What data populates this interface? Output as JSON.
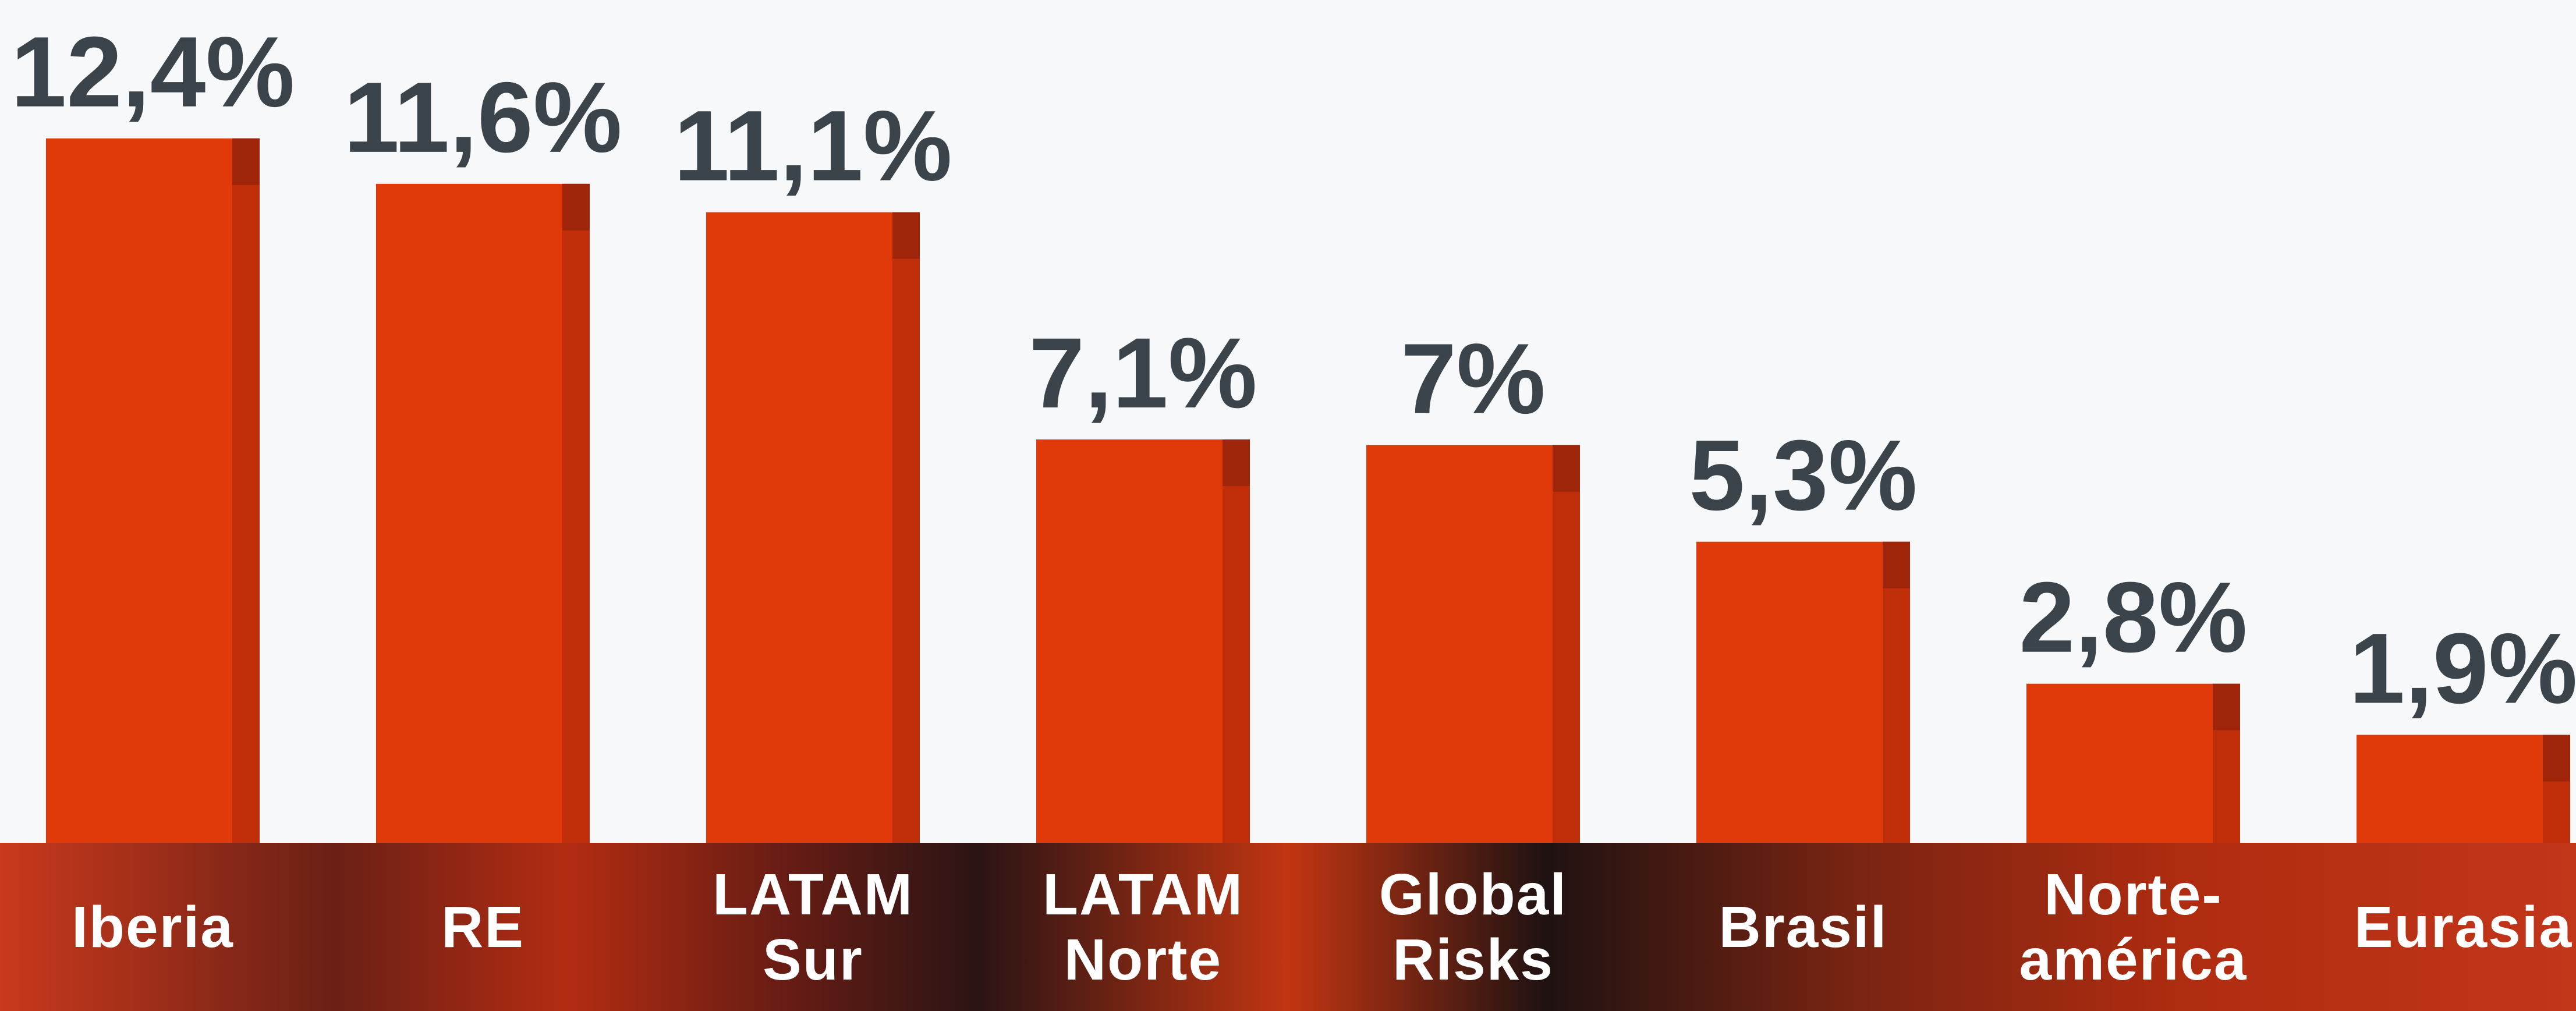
{
  "chart_data": {
    "type": "bar",
    "categories": [
      "Iberia",
      "RE",
      "LATAM Sur",
      "LATAM Norte",
      "Global Risks",
      "Brasil",
      "Norte-américa",
      "Eurasia"
    ],
    "values": [
      12.4,
      11.6,
      11.1,
      7.1,
      7,
      5.3,
      2.8,
      1.9
    ],
    "value_labels": [
      "12,4%",
      "11,6%",
      "11,1%",
      "7,1%",
      "7%",
      "5,3%",
      "2,8%",
      "1,9%"
    ],
    "color": "#e03a0a"
  }
}
